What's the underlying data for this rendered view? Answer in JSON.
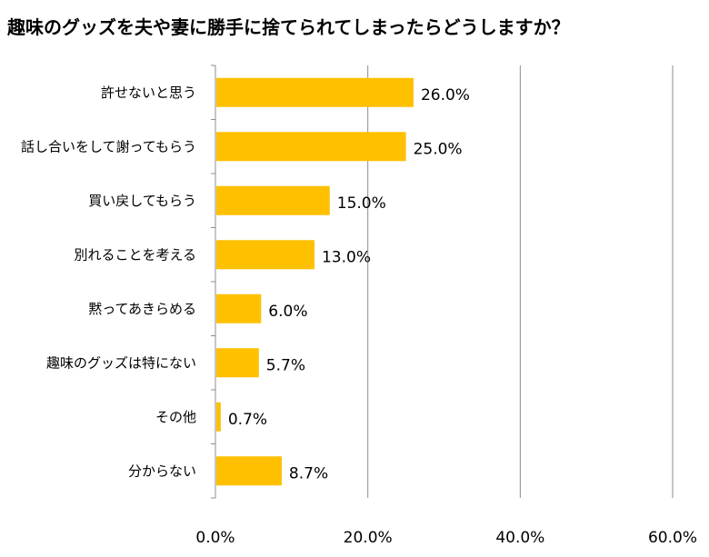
{
  "chart_data": {
    "type": "bar",
    "orientation": "horizontal",
    "title": "趣味のグッズを夫や妻に勝手に捨てられてしまったらどうしますか？",
    "categories": [
      "許せないと思う",
      "話し合いをして謝ってもらう",
      "買い戻してもらう",
      "別れることを考える",
      "黙ってあきらめる",
      "趣味のグッズは特にない",
      "その他",
      "分からない"
    ],
    "values": [
      26.0,
      25.0,
      15.0,
      13.0,
      6.0,
      5.7,
      0.7,
      8.7
    ],
    "value_labels": [
      "26.0%",
      "25.0%",
      "15.0%",
      "13.0%",
      "6.0%",
      "5.7%",
      "0.7%",
      "8.7%"
    ],
    "xlim": [
      0,
      60
    ],
    "x_ticks": [
      "0.0%",
      "20.0%",
      "40.0%",
      "60.0%"
    ],
    "grid": true,
    "bar_color": "#FFC000",
    "legend": "none"
  }
}
